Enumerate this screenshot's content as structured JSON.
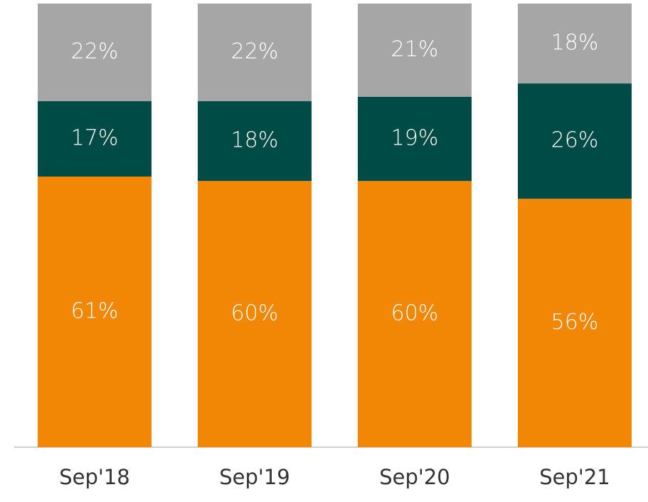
{
  "chart_data": {
    "type": "stacked_bar",
    "categories": [
      "Sep'18",
      "Sep'19",
      "Sep'20",
      "Sep'21"
    ],
    "series": [
      {
        "color": "#f28705",
        "values": [
          61,
          60,
          60,
          56
        ],
        "value_labels": [
          "61%",
          "60%",
          "60%",
          "56%"
        ]
      },
      {
        "color": "#004b45",
        "values": [
          17,
          18,
          19,
          26
        ],
        "value_labels": [
          "17%",
          "18%",
          "19%",
          "26%"
        ]
      },
      {
        "color": "#a6a6a6",
        "values": [
          22,
          22,
          21,
          18
        ],
        "value_labels": [
          "22%",
          "22%",
          "21%",
          "18%"
        ]
      }
    ],
    "ylim": [
      0,
      100
    ]
  }
}
